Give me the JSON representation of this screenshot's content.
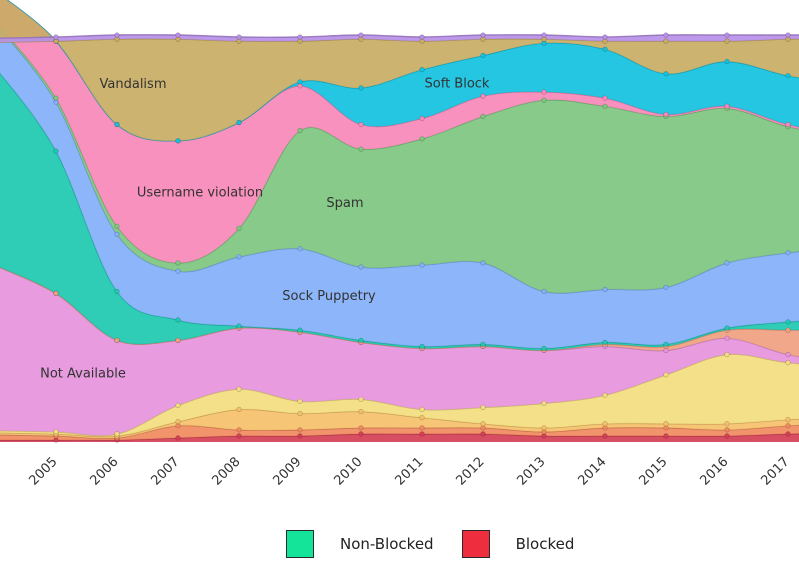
{
  "chart_data": {
    "type": "area",
    "stacked": true,
    "x": [
      "2005",
      "2006",
      "2007",
      "2008",
      "2009",
      "2010",
      "2011",
      "2012",
      "2013",
      "2014",
      "2015",
      "2016",
      "2017"
    ],
    "ylim": [
      0,
      100
    ],
    "grid": false,
    "series": [
      {
        "name": "",
        "color": "#d43f55",
        "values": [
          0.5,
          0.5,
          1,
          1.5,
          1.5,
          2,
          2,
          2,
          1.5,
          1.5,
          1.5,
          1.5,
          2
        ]
      },
      {
        "name": "",
        "color": "#f08a5e",
        "values": [
          1,
          0.5,
          3,
          1.5,
          1.5,
          1.5,
          1.5,
          1.5,
          1,
          2,
          2,
          1.5,
          2
        ]
      },
      {
        "name": "",
        "color": "#f5c06a",
        "values": [
          0.5,
          0.5,
          1,
          5,
          4,
          4,
          2.5,
          1,
          1,
          1,
          1,
          1.5,
          1.5
        ]
      },
      {
        "name": "",
        "color": "#f3dd7e",
        "values": [
          0.5,
          0.5,
          4,
          5,
          3,
          3,
          2,
          4,
          6,
          7,
          12,
          17,
          14
        ]
      },
      {
        "name": "Not Available",
        "color": "#e693dc",
        "values": [
          34,
          23,
          16,
          15,
          17,
          14,
          15,
          15,
          13,
          12,
          6,
          4,
          2
        ]
      },
      {
        "name": "",
        "color": "#f0a080",
        "values": [
          0,
          0,
          0,
          0,
          0,
          0,
          0,
          0,
          0,
          0.5,
          1,
          2,
          6
        ]
      },
      {
        "name": "",
        "color": "#1dc9b0",
        "values": [
          35,
          12,
          5,
          0.5,
          0.5,
          0.5,
          0.5,
          0.5,
          0.5,
          0.5,
          0.5,
          0.5,
          2
        ]
      },
      {
        "name": "Sock Puppetry",
        "color": "#82b0f8",
        "values": [
          12,
          14,
          12,
          17,
          20,
          18,
          20,
          20,
          14,
          13,
          14,
          16,
          17
        ]
      },
      {
        "name": "Spam",
        "color": "#7dc67f",
        "values": [
          1,
          2,
          2,
          7,
          29,
          29,
          31,
          36,
          47,
          45,
          42,
          38,
          31
        ]
      },
      {
        "name": "Username violation",
        "color": "#f888b8",
        "values": [
          14,
          25,
          30,
          26,
          11,
          6,
          5,
          5,
          2,
          2,
          0.5,
          0.5,
          0.5
        ]
      },
      {
        "name": "Soft Block",
        "color": "#12c1e0",
        "values": [
          0,
          0,
          0,
          0,
          1,
          9,
          12,
          10,
          12,
          12,
          10,
          11,
          12
        ]
      },
      {
        "name": "Vandalism",
        "color": "#c9ac64",
        "values": [
          0,
          21,
          25,
          20,
          10,
          12,
          7,
          4,
          1,
          2,
          8,
          5,
          9
        ]
      },
      {
        "name": "",
        "color": "#b88fe8",
        "values": [
          1,
          1,
          1,
          1,
          1,
          1,
          1,
          1,
          1,
          1,
          1.5,
          1.5,
          1
        ]
      }
    ],
    "legend": {
      "placement": "bottom",
      "entries": [
        {
          "name": "Non-Blocked",
          "color": "#14e39a"
        },
        {
          "name": "Blocked",
          "color": "#ee2e3e"
        }
      ]
    }
  }
}
